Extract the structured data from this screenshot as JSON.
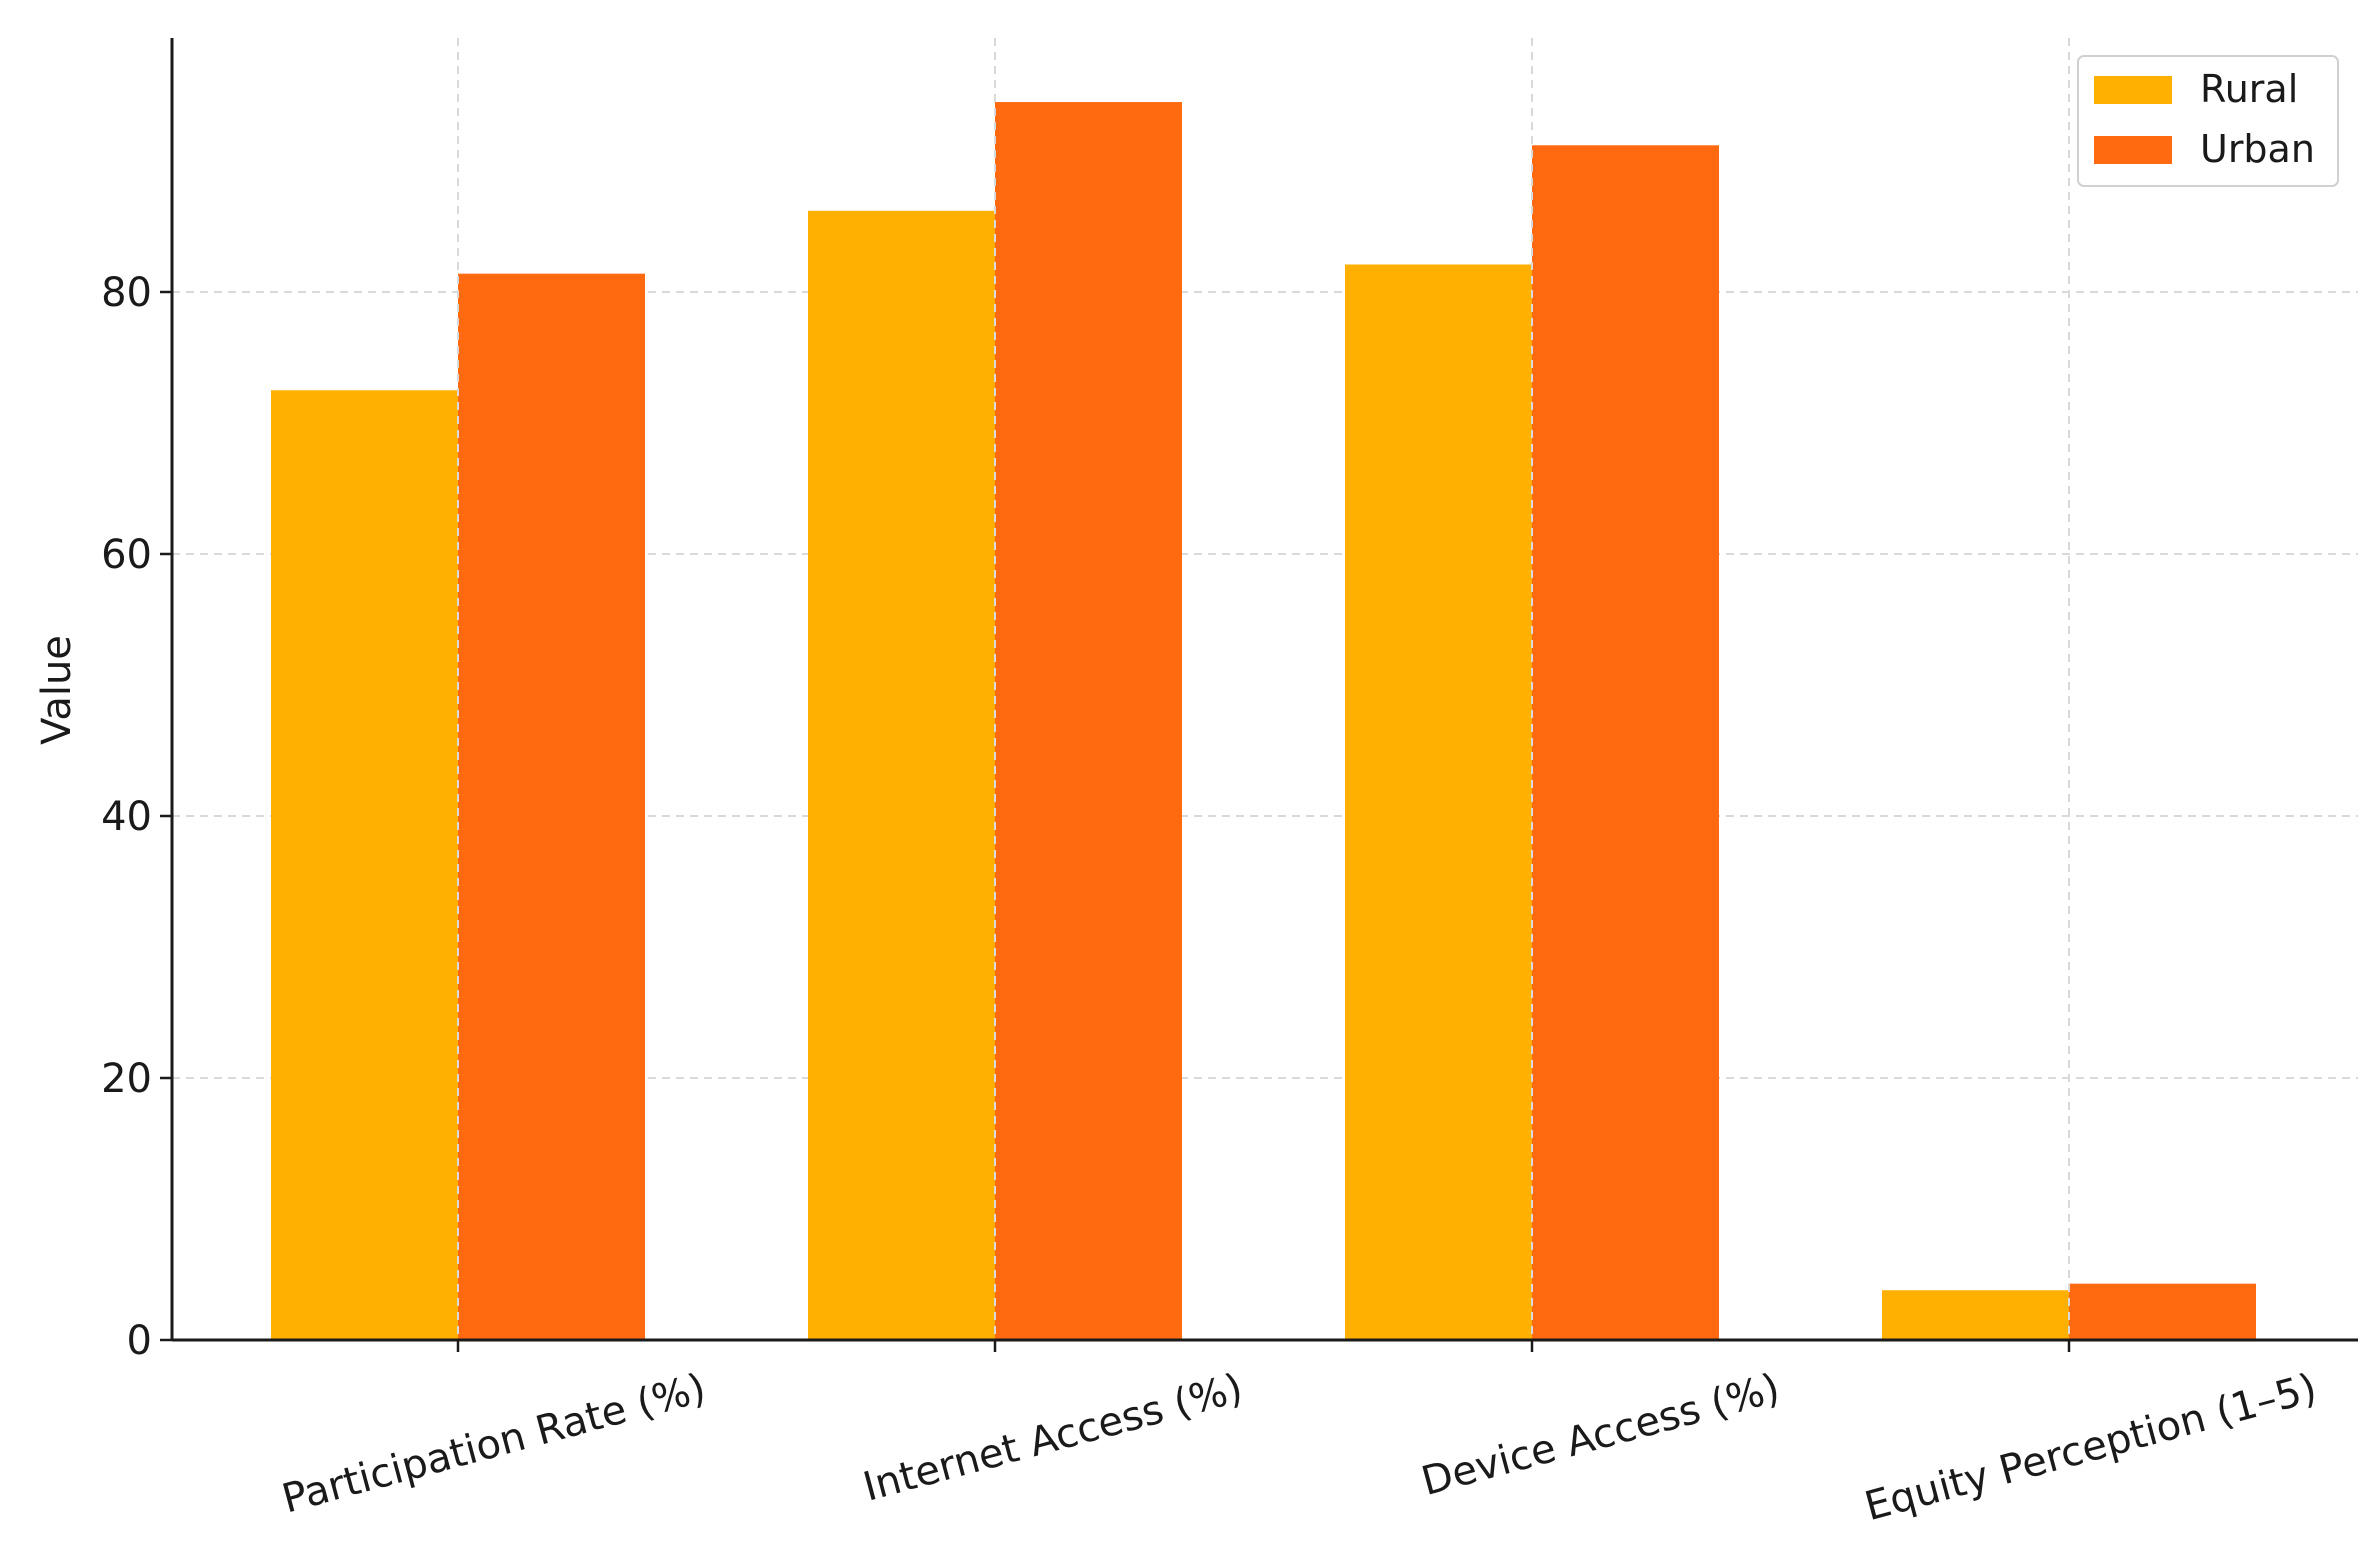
{
  "chart_data": {
    "type": "bar",
    "title": "",
    "xlabel": "",
    "ylabel": "Value",
    "categories": [
      "Participation Rate (%)",
      "Internet Access (%)",
      "Device Access (%)",
      "Equity Perception (1–5)"
    ],
    "series": [
      {
        "name": "Rural",
        "color": "#FFB000",
        "values": [
          72.5,
          86.2,
          82.1,
          3.8
        ]
      },
      {
        "name": "Urban",
        "color": "#FF6A10",
        "values": [
          81.4,
          94.5,
          91.2,
          4.3
        ]
      }
    ],
    "ylim": [
      0,
      100
    ],
    "yticks": [
      0,
      20,
      40,
      60,
      80
    ],
    "grid": true,
    "legend_position": "top-right"
  }
}
